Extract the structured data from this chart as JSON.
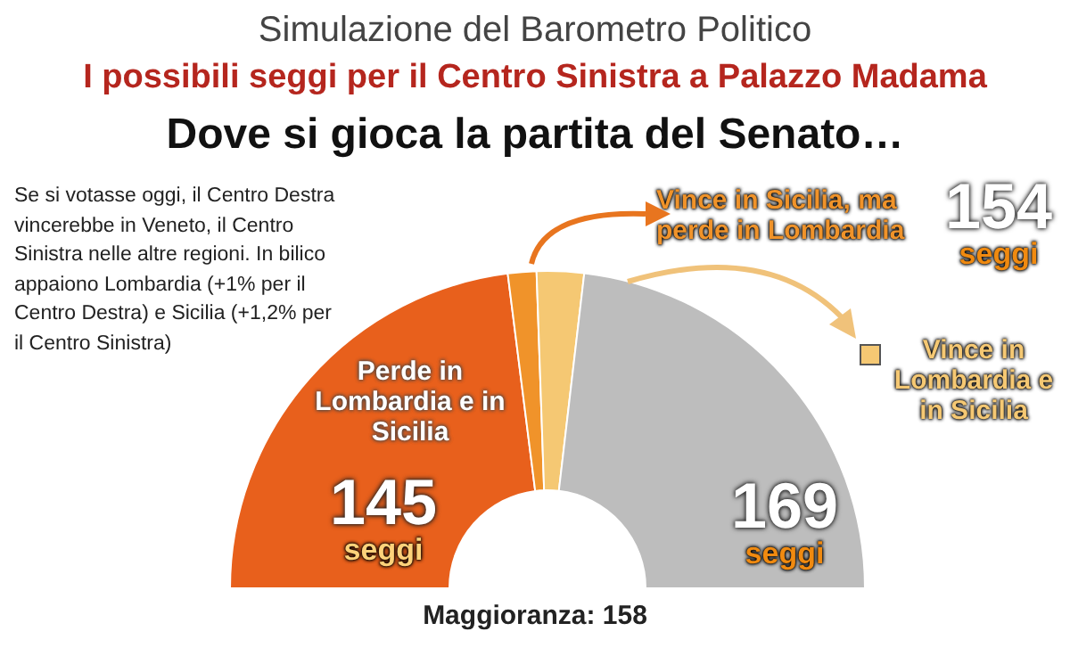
{
  "chart_data": {
    "type": "donut",
    "title": "Simulazione del Barometro Politico",
    "subtitle": "I possibili seggi per il Centro Sinistra a Palazzo Madama",
    "categories": [
      "Perde in Lombardia e in Sicilia",
      "Vince in Sicilia, ma perde in Lombardia",
      "Vince in Lombardia e in Sicilia",
      null
    ],
    "values": [
      46.0,
      2.9,
      4.8,
      46.3
    ],
    "colors": [
      "#e8601c",
      "#f0932a",
      "#f5c873",
      "#bdbdbd"
    ],
    "annotations": [
      "Dove si gioca la partita del Senato…",
      "Se si votasse oggi, il Centro Destra vincerebbe in Veneto, il Centro Sinistra nelle altre regioni. In bilico appaiono Lombardia (+1% per il Centro Destra) e Sicilia (+1,2% per il Centro Sinistra)",
      "145 seggi",
      "154 seggi",
      "169 seggi",
      "Maggioranza: 158"
    ],
    "legend": "right"
  }
}
